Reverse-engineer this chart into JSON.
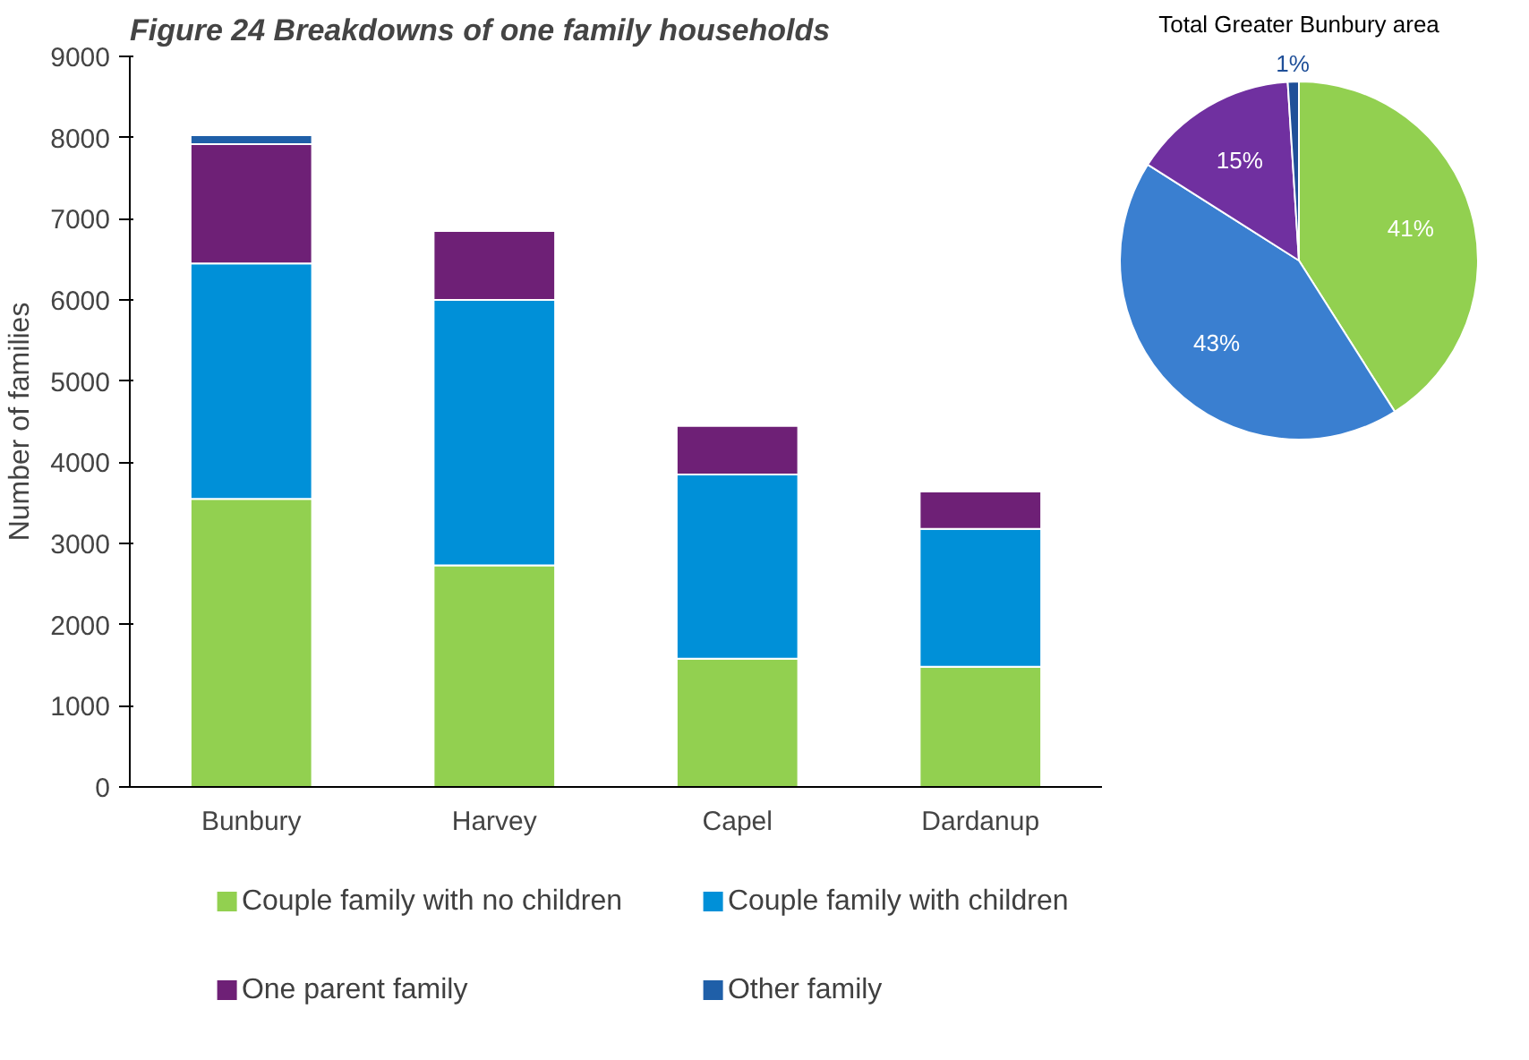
{
  "chart_data": [
    {
      "type": "bar",
      "title": "Figure 24 Breakdowns of one family households",
      "ylabel": "Number of families",
      "categories": [
        "Bunbury",
        "Harvey",
        "Capel",
        "Dardanup"
      ],
      "stacked": true,
      "ylim": [
        0,
        9000
      ],
      "yticks": [
        0,
        1000,
        2000,
        3000,
        4000,
        5000,
        6000,
        7000,
        8000,
        9000
      ],
      "grid": false,
      "legend": "bottom",
      "series": [
        {
          "name": "Couple family with no children",
          "color": "#92d050",
          "values": [
            3550,
            2730,
            1580,
            1480
          ]
        },
        {
          "name": "Couple family with children",
          "color": "#0090d8",
          "values": [
            2900,
            3270,
            2270,
            1700
          ]
        },
        {
          "name": "One parent family",
          "color": "#6e2076",
          "values": [
            1470,
            850,
            600,
            460
          ]
        },
        {
          "name": "Other family",
          "color": "#1f5fa8",
          "values": [
            110,
            null,
            null,
            null
          ]
        }
      ]
    },
    {
      "type": "pie",
      "title": "Total Greater Bunbury area",
      "categories": [
        null,
        null,
        null,
        null
      ],
      "values": [
        41,
        43,
        15,
        1
      ],
      "colors": [
        "#92d050",
        "#3a7fd0",
        "#7030a0",
        "#1f4f98"
      ],
      "value_labels": [
        "41%",
        "43%",
        "15%",
        "1%"
      ]
    }
  ]
}
